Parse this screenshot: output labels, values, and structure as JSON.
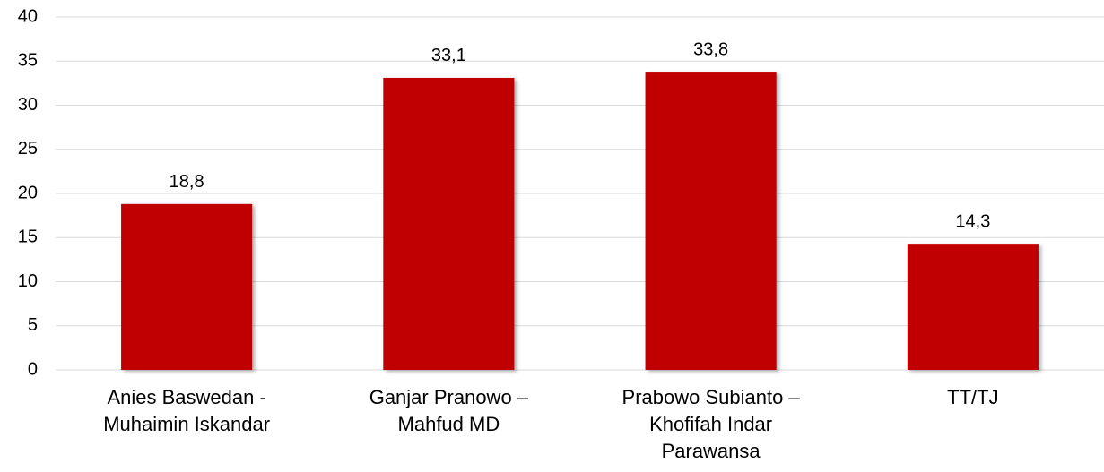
{
  "chart_data": {
    "type": "bar",
    "categories": [
      "Anies Baswedan - Muhaimin Iskandar",
      "Ganjar Pranowo – Mahfud MD",
      "Prabowo Subianto – Khofifah Indar Parawansa",
      "TT/TJ"
    ],
    "values": [
      18.8,
      33.1,
      33.8,
      14.3
    ],
    "value_labels": [
      "18,8",
      "33,1",
      "33,8",
      "14,3"
    ],
    "color": "#c00000",
    "ylim": [
      0,
      40
    ],
    "yticks": [
      0,
      5,
      10,
      15,
      20,
      25,
      30,
      35,
      40
    ],
    "grid": true
  }
}
